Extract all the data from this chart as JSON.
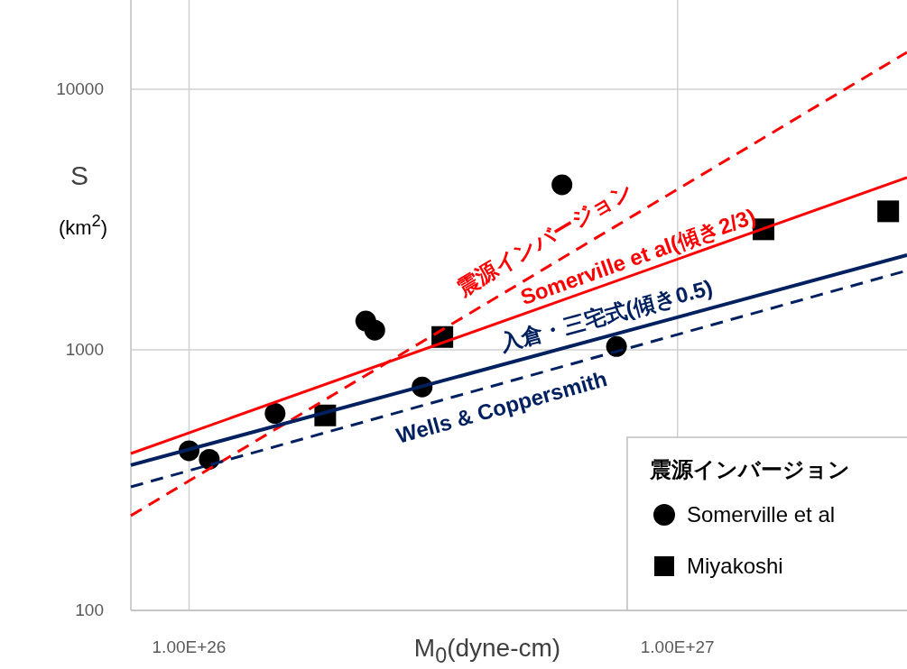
{
  "chart_data": {
    "type": "scatter",
    "xlabel": "M$_{0}$(dyne-cm)",
    "ylabel": "S (km$^{2}$)",
    "legend_title": "震源インバージョン",
    "log": "xy",
    "grid": true,
    "legend": "bottom right",
    "xlim": [
      7.6e+25,
      2.95e+27
    ],
    "ylim": [
      100,
      22000
    ],
    "xticks": [
      {
        "value": 1e+26,
        "label": "1.00E+26"
      },
      {
        "value": 1e+27,
        "label": "1.00E+27"
      }
    ],
    "yticks": [
      100,
      1000,
      10000
    ],
    "series": [
      {
        "name": "Somerville et al",
        "type": "scatter",
        "marker": "circle",
        "color": "#000000",
        "x": [
          1e+26,
          1.1e+26,
          1.5e+26,
          2.3e+26,
          2.4e+26,
          3e+26,
          5.8e+26,
          7.5e+26
        ],
        "values": [
          410,
          380,
          570,
          1290,
          1190,
          720,
          4300,
          1030
        ]
      },
      {
        "name": "Miyakoshi",
        "type": "scatter",
        "marker": "square",
        "color": "#000000",
        "x": [
          1.9e+26,
          3.3e+26,
          1.5e+27,
          2.7e+27
        ],
        "values": [
          560,
          1120,
          2900,
          3400
        ]
      },
      {
        "name": "震源インバージョン",
        "type": "line",
        "line_style": "dashed",
        "color": "#ff0000",
        "x": [
          7.6e+25,
          2.95e+27
        ],
        "values": [
          231,
          13860
        ]
      },
      {
        "name": "Somerville et al(傾き2/3)",
        "type": "line",
        "line_style": "solid",
        "color": "#ff0000",
        "x": [
          7.6e+25,
          2.95e+27
        ],
        "values": [
          400,
          4580
        ]
      },
      {
        "name": "入倉・三宅式(傾き0.5)",
        "type": "line",
        "line_style": "solid",
        "color": "#002060",
        "x": [
          7.6e+25,
          2.95e+27
        ],
        "values": [
          361,
          2308
        ]
      },
      {
        "name": "Wells & Coppersmith",
        "type": "line",
        "line_style": "dashed",
        "color": "#002060",
        "x": [
          7.6e+25,
          2.95e+27
        ],
        "values": [
          298,
          2015
        ]
      }
    ]
  }
}
